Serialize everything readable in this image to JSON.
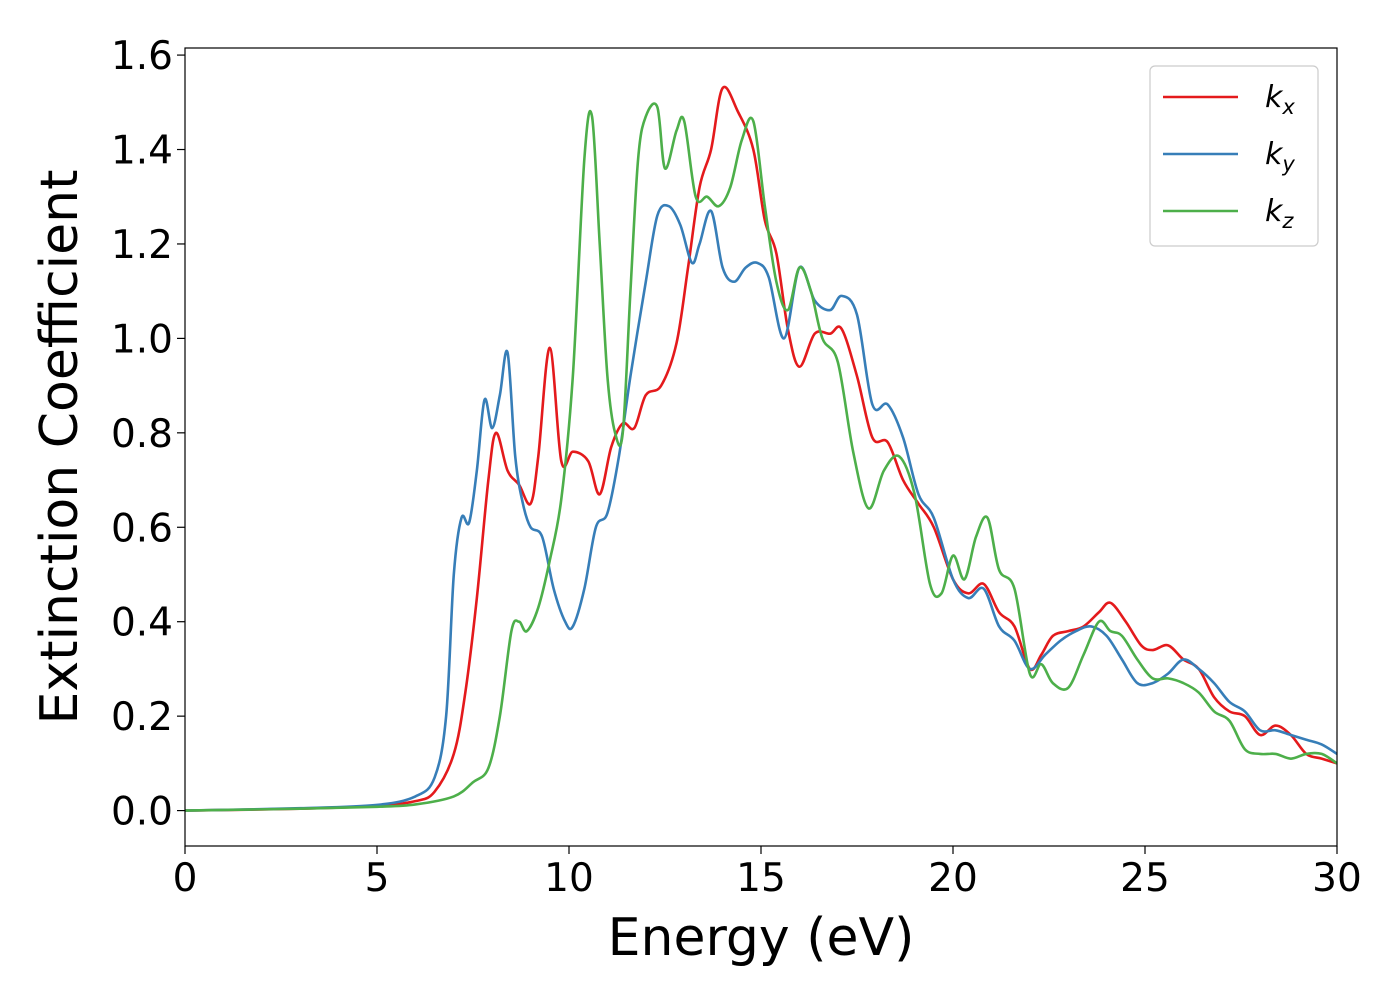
{
  "chart_data": {
    "type": "line",
    "xlabel": "Energy (eV)",
    "ylabel": "Extinction Coefficient",
    "xlim": [
      0,
      30
    ],
    "ylim": [
      -0.075,
      1.615
    ],
    "xticks": [
      0,
      5,
      10,
      15,
      20,
      25,
      30
    ],
    "yticks": [
      0.0,
      0.2,
      0.4,
      0.6,
      0.8,
      1.0,
      1.2,
      1.4,
      1.6
    ],
    "xtick_labels": [
      "0",
      "5",
      "10",
      "15",
      "20",
      "25",
      "30"
    ],
    "ytick_labels": [
      "0.0",
      "0.2",
      "0.4",
      "0.6",
      "0.8",
      "1.0",
      "1.2",
      "1.4",
      "1.6"
    ],
    "grid": false,
    "legend": "top-right",
    "series": [
      {
        "name": "k_x",
        "label_main": "k",
        "label_sub": "x",
        "color": "#e41a1c",
        "x": [
          0,
          3,
          5,
          6,
          6.5,
          7,
          7.3,
          7.6,
          7.9,
          8.1,
          8.4,
          8.7,
          9.0,
          9.2,
          9.5,
          9.8,
          10.1,
          10.5,
          10.8,
          11.1,
          11.4,
          11.7,
          12.0,
          12.4,
          12.8,
          13.1,
          13.4,
          13.7,
          14.0,
          14.4,
          14.8,
          15.1,
          15.4,
          15.7,
          16.0,
          16.4,
          16.8,
          17.1,
          17.5,
          17.9,
          18.3,
          18.7,
          19.1,
          19.5,
          20.0,
          20.4,
          20.8,
          21.2,
          21.6,
          22.0,
          22.3,
          22.6,
          23.0,
          23.4,
          23.8,
          24.1,
          24.5,
          24.9,
          25.2,
          25.6,
          26.0,
          26.4,
          26.8,
          27.2,
          27.6,
          28.0,
          28.4,
          28.8,
          29.2,
          29.6,
          30
        ],
        "y": [
          0.0,
          0.004,
          0.01,
          0.02,
          0.04,
          0.12,
          0.25,
          0.45,
          0.7,
          0.8,
          0.72,
          0.69,
          0.65,
          0.75,
          0.98,
          0.74,
          0.76,
          0.74,
          0.67,
          0.77,
          0.82,
          0.81,
          0.88,
          0.9,
          0.99,
          1.15,
          1.32,
          1.4,
          1.53,
          1.48,
          1.4,
          1.25,
          1.18,
          1.02,
          0.94,
          1.01,
          1.01,
          1.02,
          0.92,
          0.79,
          0.78,
          0.7,
          0.65,
          0.6,
          0.49,
          0.46,
          0.48,
          0.42,
          0.39,
          0.3,
          0.33,
          0.37,
          0.38,
          0.39,
          0.42,
          0.44,
          0.4,
          0.35,
          0.34,
          0.35,
          0.32,
          0.3,
          0.24,
          0.21,
          0.2,
          0.16,
          0.18,
          0.16,
          0.12,
          0.11,
          0.1
        ]
      },
      {
        "name": "k_y",
        "label_main": "k",
        "label_sub": "y",
        "color": "#377eb8",
        "x": [
          0,
          3,
          5,
          6,
          6.5,
          6.8,
          7.0,
          7.2,
          7.4,
          7.6,
          7.8,
          8.0,
          8.2,
          8.4,
          8.6,
          8.8,
          9.0,
          9.3,
          9.6,
          9.9,
          10.1,
          10.4,
          10.7,
          11.0,
          11.3,
          11.6,
          12.0,
          12.3,
          12.6,
          12.9,
          13.2,
          13.4,
          13.7,
          14.0,
          14.3,
          14.6,
          14.9,
          15.2,
          15.6,
          16.0,
          16.4,
          16.8,
          17.1,
          17.5,
          17.9,
          18.3,
          18.7,
          19.1,
          19.5,
          20.0,
          20.4,
          20.8,
          21.2,
          21.6,
          22.0,
          22.4,
          22.8,
          23.2,
          23.6,
          24.0,
          24.4,
          24.8,
          25.2,
          25.6,
          26.0,
          26.4,
          26.8,
          27.2,
          27.6,
          28.0,
          28.4,
          28.8,
          29.2,
          29.6,
          30
        ],
        "y": [
          0.0,
          0.005,
          0.012,
          0.03,
          0.07,
          0.2,
          0.5,
          0.62,
          0.61,
          0.72,
          0.87,
          0.81,
          0.88,
          0.97,
          0.75,
          0.65,
          0.6,
          0.58,
          0.47,
          0.4,
          0.39,
          0.47,
          0.6,
          0.63,
          0.75,
          0.92,
          1.12,
          1.26,
          1.28,
          1.24,
          1.16,
          1.2,
          1.27,
          1.15,
          1.12,
          1.15,
          1.16,
          1.13,
          1.0,
          1.15,
          1.08,
          1.06,
          1.09,
          1.05,
          0.86,
          0.86,
          0.79,
          0.67,
          0.62,
          0.49,
          0.45,
          0.47,
          0.39,
          0.36,
          0.3,
          0.33,
          0.36,
          0.38,
          0.39,
          0.37,
          0.32,
          0.27,
          0.27,
          0.29,
          0.32,
          0.3,
          0.27,
          0.23,
          0.21,
          0.17,
          0.17,
          0.16,
          0.15,
          0.14,
          0.12
        ]
      },
      {
        "name": "k_z",
        "label_main": "k",
        "label_sub": "z",
        "color": "#4daf4a",
        "x": [
          0,
          3,
          5,
          6,
          7,
          7.5,
          7.9,
          8.2,
          8.5,
          8.7,
          8.9,
          9.2,
          9.5,
          9.8,
          10.1,
          10.4,
          10.6,
          10.8,
          11.0,
          11.2,
          11.4,
          11.6,
          11.8,
          12.0,
          12.3,
          12.5,
          12.8,
          13.0,
          13.3,
          13.6,
          13.9,
          14.2,
          14.5,
          14.8,
          15.1,
          15.4,
          15.7,
          16.0,
          16.3,
          16.6,
          17.0,
          17.4,
          17.8,
          18.2,
          18.6,
          19.0,
          19.4,
          19.7,
          20.0,
          20.3,
          20.6,
          20.9,
          21.2,
          21.6,
          22.0,
          22.3,
          22.6,
          23.0,
          23.4,
          23.8,
          24.1,
          24.4,
          24.8,
          25.2,
          25.6,
          26.0,
          26.4,
          26.8,
          27.2,
          27.6,
          28.0,
          28.4,
          28.8,
          29.2,
          29.6,
          30
        ],
        "y": [
          0.0,
          0.004,
          0.008,
          0.013,
          0.03,
          0.06,
          0.09,
          0.2,
          0.38,
          0.4,
          0.38,
          0.43,
          0.53,
          0.66,
          0.92,
          1.38,
          1.47,
          1.2,
          0.92,
          0.8,
          0.8,
          1.1,
          1.38,
          1.47,
          1.49,
          1.36,
          1.44,
          1.46,
          1.3,
          1.3,
          1.28,
          1.32,
          1.42,
          1.46,
          1.28,
          1.12,
          1.06,
          1.15,
          1.1,
          1.0,
          0.95,
          0.76,
          0.64,
          0.72,
          0.75,
          0.67,
          0.48,
          0.46,
          0.54,
          0.49,
          0.58,
          0.62,
          0.51,
          0.47,
          0.29,
          0.31,
          0.27,
          0.26,
          0.33,
          0.4,
          0.38,
          0.37,
          0.32,
          0.28,
          0.28,
          0.27,
          0.25,
          0.21,
          0.19,
          0.13,
          0.12,
          0.12,
          0.11,
          0.12,
          0.12,
          0.1
        ]
      }
    ]
  }
}
